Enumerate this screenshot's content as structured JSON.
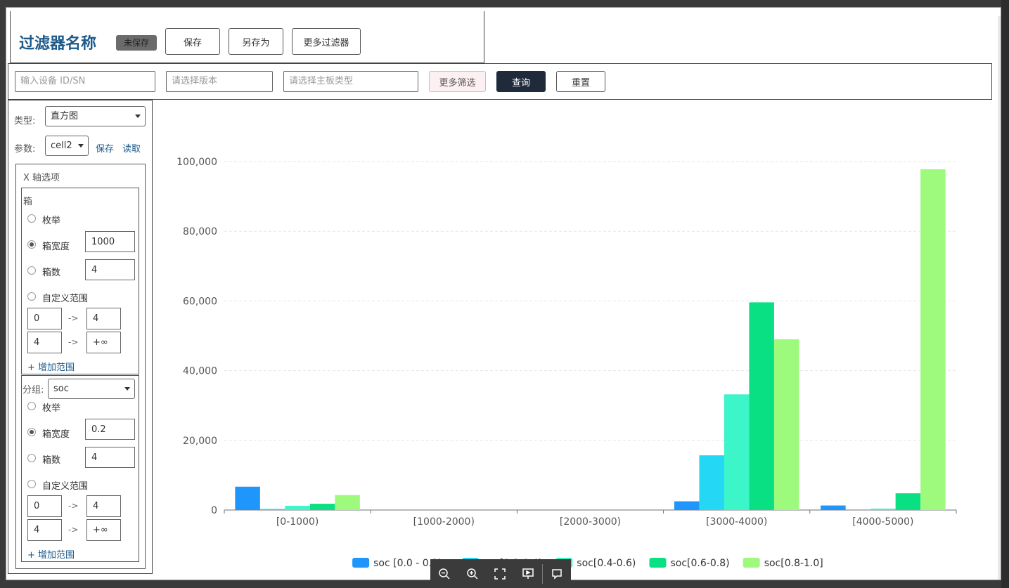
{
  "header": {
    "title": "过滤器名称",
    "status_badge": "未保存",
    "save_label": "保存",
    "save_as_label": "另存为",
    "more_filters_label": "更多过滤器"
  },
  "filters": {
    "device_placeholder": "输入设备 ID/SN",
    "version_placeholder": "请选择版本",
    "board_placeholder": "请选择主板类型",
    "more_filter_label": "更多筛选",
    "query_label": "查询",
    "reset_label": "重置"
  },
  "panel": {
    "type_label": "类型:",
    "type_value": "直方图",
    "param_label": "参数:",
    "param_value": "cell2",
    "param_save": "保存",
    "param_read": "读取",
    "x_options_title": "X 轴选项",
    "bin_title": "箱",
    "x": {
      "enum_label": "枚举",
      "bin_width_label": "箱宽度",
      "bin_width_value": "1000",
      "bin_count_label": "箱数",
      "bin_count_value": "4",
      "custom_range_label": "自定义范围",
      "ranges": [
        [
          "0",
          "4"
        ],
        [
          "4",
          "+∞"
        ]
      ],
      "add_range_label": "+ 增加范围"
    },
    "group_label": "分组:",
    "group_value": "soc",
    "group": {
      "enum_label": "枚举",
      "bin_width_label": "箱宽度",
      "bin_width_value": "0.2",
      "bin_count_label": "箱数",
      "bin_count_value": "4",
      "custom_range_label": "自定义范围",
      "ranges": [
        [
          "0",
          "4"
        ],
        [
          "4",
          "+∞"
        ]
      ],
      "add_range_label": "+ 增加范围"
    },
    "arrow": "->"
  },
  "chart_data": {
    "type": "bar",
    "categories": [
      "[0-1000)",
      "[1000-2000)",
      "[2000-3000)",
      "[3000-4000)",
      "[4000-5000)"
    ],
    "series": [
      {
        "name": "soc [0.0 - 0.2)",
        "color": "#1e96fc",
        "values": [
          6700,
          0,
          0,
          2500,
          1300
        ]
      },
      {
        "name": "soc[0.2-0.4)",
        "color": "#24d8f5",
        "values": [
          300,
          0,
          0,
          15700,
          0
        ]
      },
      {
        "name": "soc[0.4-0.6)",
        "color": "#3cf5c8",
        "values": [
          1200,
          0,
          0,
          33200,
          400
        ]
      },
      {
        "name": "soc[0.6-0.8)",
        "color": "#09e083",
        "values": [
          1800,
          0,
          0,
          59600,
          4800
        ]
      },
      {
        "name": "soc[0.8-1.0]",
        "color": "#9efa7c",
        "values": [
          4300,
          0,
          0,
          49000,
          97800
        ]
      }
    ],
    "yticks": [
      "0",
      "20,000",
      "40,000",
      "60,000",
      "80,000",
      "100,000"
    ],
    "ylim": [
      0,
      100000
    ],
    "title": "",
    "xlabel": "",
    "ylabel": "",
    "grid": true,
    "legend_position": "bottom-center"
  },
  "toolbar": {
    "icons": [
      "zoom-out-icon",
      "zoom-in-icon",
      "fit-screen-icon",
      "present-icon",
      "comment-icon"
    ]
  }
}
